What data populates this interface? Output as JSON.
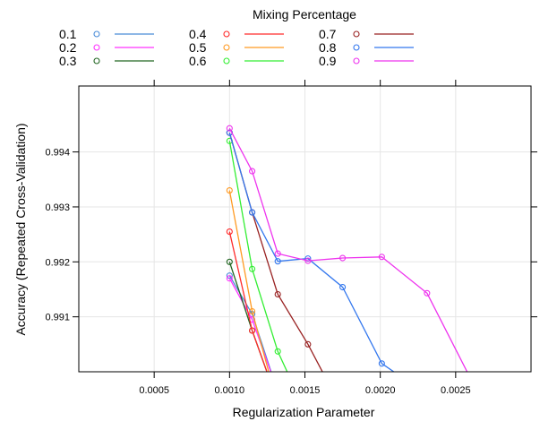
{
  "chart_data": {
    "type": "line",
    "xlabel": "Regularization Parameter",
    "ylabel": "Accuracy (Repeated Cross-Validation)",
    "legend_title": "Mixing Percentage",
    "legend_position": "top",
    "xlim": [
      0.0,
      0.003
    ],
    "ylim": [
      0.99,
      0.9952
    ],
    "x_ticks": [
      0.0005,
      0.001,
      0.0015,
      0.002,
      0.0025
    ],
    "x_tick_labels": [
      "0.0005",
      "0.0010",
      "0.0015",
      "0.0020",
      "0.0025"
    ],
    "y_ticks": [
      0.991,
      0.992,
      0.993,
      0.994
    ],
    "y_tick_labels": [
      "0.991",
      "0.992",
      "0.993",
      "0.994"
    ],
    "grid": true,
    "series": [
      {
        "name": "0.1",
        "color": "#4a8cd8",
        "x": [
          0.001,
          0.00115,
          0.0013
        ],
        "y": [
          0.99175,
          0.99105,
          0.9898
        ]
      },
      {
        "name": "0.2",
        "color": "#ff33ff",
        "x": [
          0.001,
          0.00115,
          0.0013
        ],
        "y": [
          0.9917,
          0.99095,
          0.9898
        ]
      },
      {
        "name": "0.3",
        "color": "#226622",
        "x": [
          0.001,
          0.00115,
          0.0013
        ],
        "y": [
          0.992,
          0.99075,
          0.9896
        ]
      },
      {
        "name": "0.4",
        "color": "#ff2a2a",
        "x": [
          0.001,
          0.00115,
          0.0013
        ],
        "y": [
          0.99255,
          0.99075,
          0.9896
        ]
      },
      {
        "name": "0.5",
        "color": "#ff9a22",
        "x": [
          0.001,
          0.00115,
          0.0013
        ],
        "y": [
          0.9933,
          0.9911,
          0.9896
        ]
      },
      {
        "name": "0.6",
        "color": "#33ee33",
        "x": [
          0.001,
          0.00115,
          0.00132,
          0.0015
        ],
        "y": [
          0.9942,
          0.99187,
          0.99037,
          0.9893
        ]
      },
      {
        "name": "0.7",
        "color": "#992222",
        "x": [
          0.001,
          0.00115,
          0.00132,
          0.00152,
          0.00175
        ],
        "y": [
          0.99435,
          0.9929,
          0.99141,
          0.9905,
          0.9893
        ]
      },
      {
        "name": "0.8",
        "color": "#3377ee",
        "x": [
          0.001,
          0.00115,
          0.00132,
          0.00152,
          0.00175,
          0.00201,
          0.0023
        ],
        "y": [
          0.99435,
          0.9929,
          0.99201,
          0.99206,
          0.99154,
          0.99015,
          0.9896
        ]
      },
      {
        "name": "0.9",
        "color": "#ee33ee",
        "x": [
          0.001,
          0.00115,
          0.00132,
          0.00152,
          0.00175,
          0.00201,
          0.00231,
          0.00265
        ],
        "y": [
          0.99443,
          0.99365,
          0.99215,
          0.99202,
          0.99207,
          0.99209,
          0.99143,
          0.9896
        ]
      }
    ]
  }
}
